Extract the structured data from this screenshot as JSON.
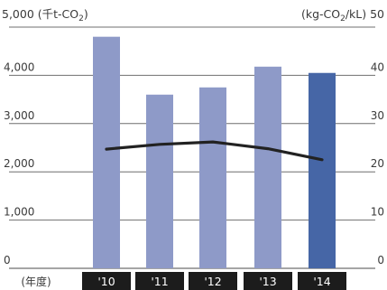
{
  "chart_data": {
    "type": "bar",
    "left_axis_label_prefix": "5,000 (千t-CO",
    "left_axis_label_sub": "2",
    "left_axis_label_suffix": ")",
    "right_axis_label_prefix": "(kg-CO",
    "right_axis_label_sub": "2",
    "right_axis_label_suffix": "/kL) 50",
    "x_axis_unit_label": "(年度)",
    "categories": [
      "'10",
      "'11",
      "'12",
      "'13",
      "'14"
    ],
    "left_ticks": [
      "4,000",
      "3,000",
      "2,000",
      "1,000",
      "0"
    ],
    "right_ticks": [
      "40",
      "30",
      "20",
      "10",
      "0"
    ],
    "ylim_left": [
      0,
      5000
    ],
    "ylim_right": [
      0,
      50
    ],
    "series": [
      {
        "type": "bar",
        "axis": "left",
        "values": [
          4800,
          3600,
          3750,
          4180,
          4050
        ]
      },
      {
        "type": "line",
        "axis": "right",
        "values": [
          24.7,
          25.7,
          26.2,
          24.8,
          22.5
        ]
      }
    ],
    "colors": {
      "bar": "#8e9ac8",
      "bar_highlight": "#4666a6",
      "line": "#222222",
      "grid": "#6f6f6f",
      "axis_band": "#1c1c1c"
    },
    "highlight_index": 4,
    "grid": true
  }
}
